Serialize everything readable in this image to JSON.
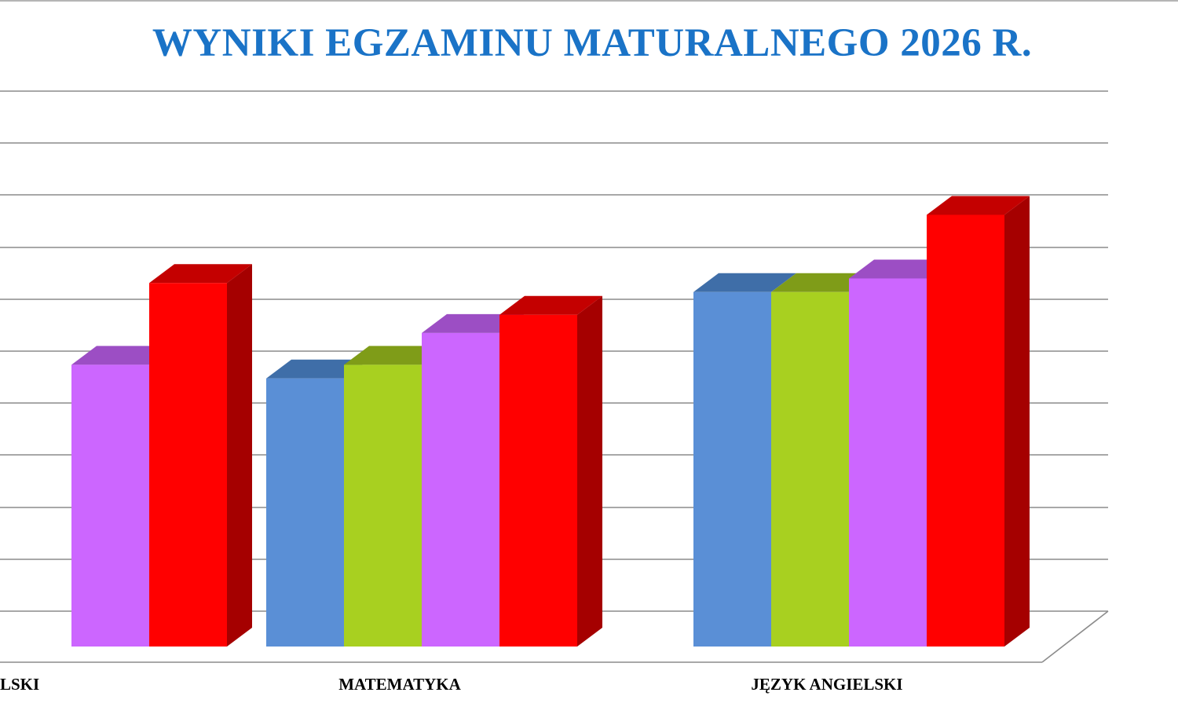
{
  "colors": {
    "title": "#1a73c7",
    "gridline": "#8c8c8c",
    "series": [
      "#5a8fd6",
      "#a8d020",
      "#cc66ff",
      "#ff0000"
    ],
    "series_top": [
      "#3f6ea8",
      "#7f9c18",
      "#9c4ec4",
      "#c40000"
    ],
    "series_side": [
      "#3a5f90",
      "#6f8a12",
      "#8a44b0",
      "#a50000"
    ]
  },
  "chart_data": {
    "type": "bar",
    "style": "3d-clustered-column",
    "title": "WYNIKI EGZAMINU MATURALNEGO 2026 R.",
    "categories": [
      "JĘZYK POLSKI",
      "MATEMATYKA",
      "JĘZYK ANGIELSKI"
    ],
    "category_labels_visible": [
      "LSKI",
      "MATEMATYKA",
      "JĘZYK ANGIELSKI"
    ],
    "series": [
      {
        "values": [
          null,
          59,
          78
        ]
      },
      {
        "values": [
          null,
          62,
          78
        ]
      },
      {
        "values": [
          62,
          69,
          81
        ]
      },
      {
        "values": [
          80,
          73,
          95
        ]
      }
    ],
    "ylim": [
      0,
      110
    ],
    "ytick_step": 10,
    "grid": true,
    "legend": "none",
    "xlabel": "",
    "ylabel": ""
  }
}
